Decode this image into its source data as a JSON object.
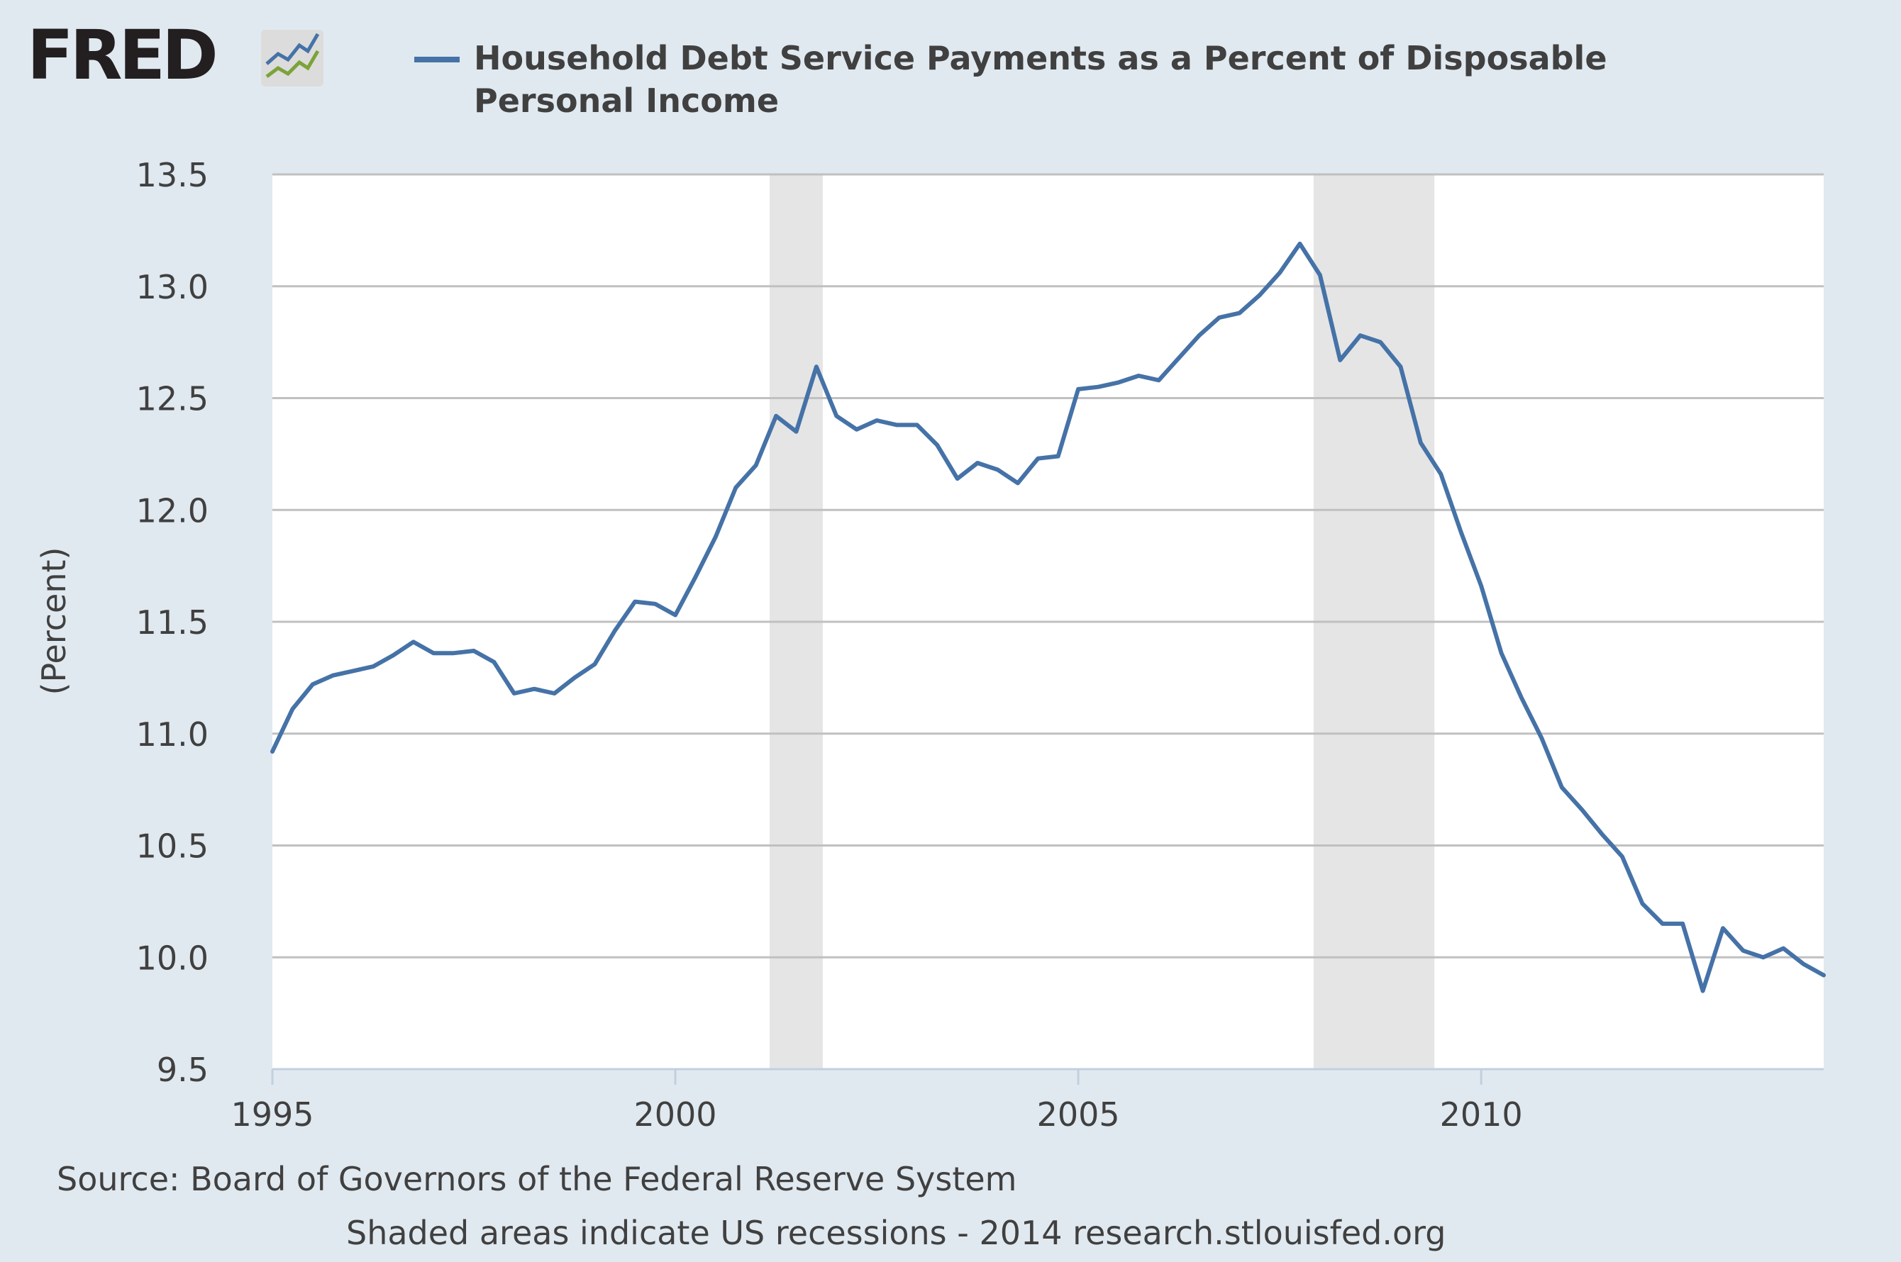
{
  "logo": {
    "text": "FRED",
    "icon": "fred-chart-icon"
  },
  "footer": {
    "source": "Source: Board of Governors of the Federal Reserve System",
    "note": "Shaded areas indicate US recessions - 2014 research.stlouisfed.org"
  },
  "colors": {
    "series": "#4572a7",
    "background": "#e1e9f0",
    "plot": "#ffffff",
    "recession": "#e5e5e5",
    "grid": "#c0c0c0"
  },
  "chart_data": {
    "type": "line",
    "title": "",
    "xlabel": "",
    "ylabel": "(Percent)",
    "xlim": [
      1995.0,
      2014.25
    ],
    "ylim": [
      9.5,
      13.5
    ],
    "x_ticks": [
      "1995",
      "2000",
      "2005",
      "2010"
    ],
    "y_ticks": [
      "9.5",
      "10.0",
      "10.5",
      "11.0",
      "11.5",
      "12.0",
      "12.5",
      "13.0",
      "13.5"
    ],
    "grid": true,
    "legend_position": "top",
    "recessions": [
      [
        2001.17,
        2001.83
      ],
      [
        2007.92,
        2009.42
      ]
    ],
    "series": [
      {
        "name": "Household Debt Service Payments as a Percent of Disposable Personal Income",
        "x": [
          1995.0,
          1995.25,
          1995.5,
          1995.75,
          1996.0,
          1996.25,
          1996.5,
          1996.75,
          1997.0,
          1997.25,
          1997.5,
          1997.75,
          1998.0,
          1998.25,
          1998.5,
          1998.75,
          1999.0,
          1999.25,
          1999.5,
          1999.75,
          2000.0,
          2000.25,
          2000.5,
          2000.75,
          2001.0,
          2001.25,
          2001.5,
          2001.75,
          2002.0,
          2002.25,
          2002.5,
          2002.75,
          2003.0,
          2003.25,
          2003.5,
          2003.75,
          2004.0,
          2004.25,
          2004.5,
          2004.75,
          2005.0,
          2005.25,
          2005.5,
          2005.75,
          2006.0,
          2006.25,
          2006.5,
          2006.75,
          2007.0,
          2007.25,
          2007.5,
          2007.75,
          2008.0,
          2008.25,
          2008.5,
          2008.75,
          2009.0,
          2009.25,
          2009.5,
          2009.75,
          2010.0,
          2010.25,
          2010.5,
          2010.75,
          2011.0,
          2011.25,
          2011.5,
          2011.75,
          2012.0,
          2012.25,
          2012.5,
          2012.75,
          2013.0,
          2013.25,
          2013.5,
          2013.75,
          2014.0,
          2014.25
        ],
        "y": [
          10.92,
          11.11,
          11.22,
          11.26,
          11.28,
          11.3,
          11.35,
          11.41,
          11.36,
          11.36,
          11.37,
          11.32,
          11.18,
          11.2,
          11.18,
          11.25,
          11.31,
          11.46,
          11.59,
          11.58,
          11.53,
          11.7,
          11.88,
          12.1,
          12.2,
          12.42,
          12.35,
          12.64,
          12.42,
          12.36,
          12.4,
          12.38,
          12.38,
          12.29,
          12.14,
          12.21,
          12.18,
          12.12,
          12.23,
          12.24,
          12.54,
          12.55,
          12.57,
          12.6,
          12.58,
          12.68,
          12.78,
          12.86,
          12.88,
          12.96,
          13.06,
          13.19,
          13.05,
          12.67,
          12.78,
          12.75,
          12.64,
          12.3,
          12.16,
          11.9,
          11.66,
          11.36,
          11.16,
          10.98,
          10.76,
          10.66,
          10.55,
          10.45,
          10.24,
          10.15,
          10.15,
          9.85,
          10.13,
          10.03,
          10.0,
          10.04,
          9.97,
          9.92
        ]
      }
    ]
  }
}
